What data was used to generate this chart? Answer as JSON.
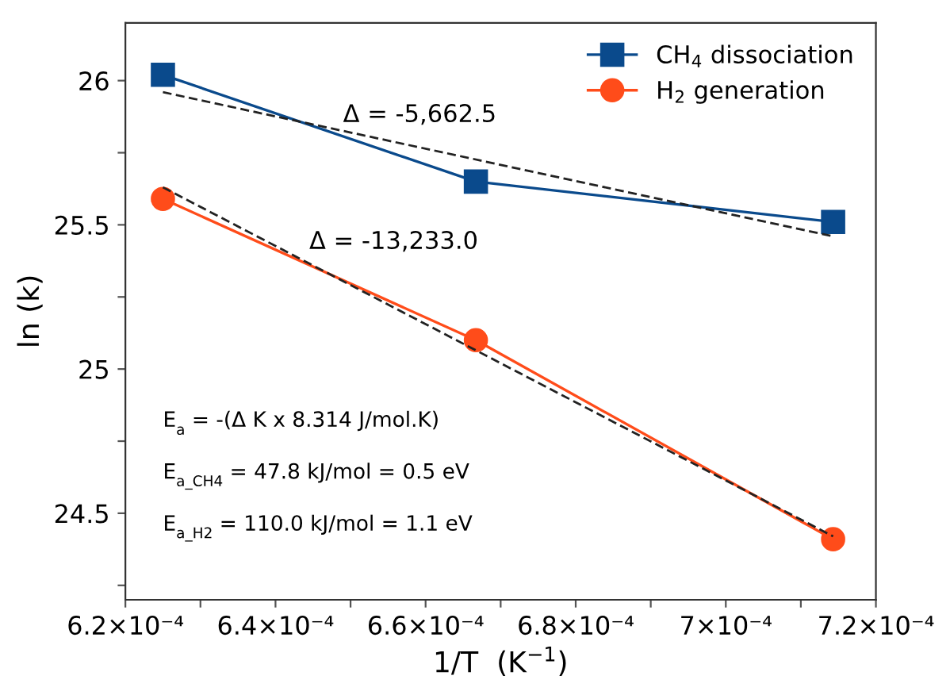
{
  "chart_data": {
    "type": "line",
    "xlabel": "1/T  (K$^{−1}$)",
    "ylabel": "ln (k)",
    "xlim": [
      0.00062,
      0.00072
    ],
    "xticks": [
      {
        "value": 0.00062,
        "label": "6.2×10⁻⁴"
      },
      {
        "value": 0.00063,
        "label": null
      },
      {
        "value": 0.00064,
        "label": "6.4×10⁻⁴"
      },
      {
        "value": 0.00065,
        "label": null
      },
      {
        "value": 0.00066,
        "label": "6.6×10⁻⁴"
      },
      {
        "value": 0.00067,
        "label": null
      },
      {
        "value": 0.00068,
        "label": "6.8×10⁻⁴"
      },
      {
        "value": 0.00069,
        "label": null
      },
      {
        "value": 0.0007,
        "label": "7×10⁻⁴"
      },
      {
        "value": 0.00071,
        "label": null
      },
      {
        "value": 0.00072,
        "label": "7.2×10⁻⁴"
      }
    ],
    "ylim": [
      24.2,
      26.2
    ],
    "yticks": [
      {
        "value": 24.25,
        "label": null
      },
      24.5,
      {
        "value": 24.75,
        "label": null
      },
      25,
      {
        "value": 25.25,
        "label": null
      },
      25.5,
      {
        "value": 25.75,
        "label": null
      },
      26
    ],
    "legend": "top right",
    "grid": false,
    "series": [
      {
        "name": "CH$_{4}$ dissociation",
        "color": "#0a4a8c",
        "marker": "square",
        "line_style": "solid",
        "x": [
          0.000625,
          0.0006667,
          0.0007143
        ],
        "values": [
          26.02,
          25.65,
          25.51
        ]
      },
      {
        "name": "H$_{2}$ generation",
        "color": "#ff4c1a",
        "marker": "circle",
        "line_style": "solid",
        "x": [
          0.000625,
          0.0006667,
          0.0007143
        ],
        "values": [
          25.59,
          25.1,
          24.41
        ]
      },
      {
        "color": "#222222",
        "marker": "none",
        "line_style": "dashed",
        "x": [
          0.000625,
          0.0007143
        ],
        "values": [
          25.96,
          25.46
        ]
      },
      {
        "color": "#222222",
        "marker": "none",
        "line_style": "dashed",
        "x": [
          0.000625,
          0.0007143
        ],
        "values": [
          25.63,
          24.42
        ]
      }
    ],
    "annotations": [
      "Δ = -5,662.5",
      "Δ = -13,233.0",
      "E$_{a}$ = -(Δ K x 8.314 J/mol.K)",
      "E$_{a_CH4}$ = 47.8 kJ/mol = 0.5 eV",
      "E$_{a_H2}$ = 110.0 kJ/mol = 1.1 eV"
    ]
  }
}
